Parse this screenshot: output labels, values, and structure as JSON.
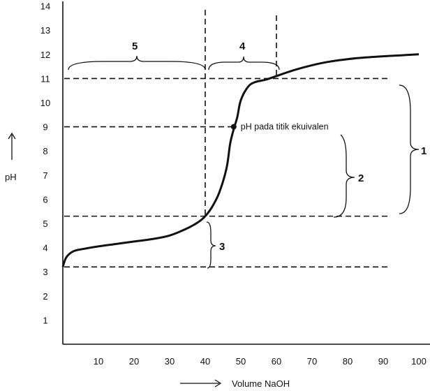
{
  "chart_data": {
    "type": "line",
    "title": "",
    "xlabel": "Volume NaOH",
    "ylabel": "pH",
    "xlim": [
      0,
      100
    ],
    "ylim": [
      0,
      14
    ],
    "x_ticks": [
      10,
      20,
      30,
      40,
      50,
      60,
      70,
      80,
      90,
      100
    ],
    "y_ticks": [
      1,
      2,
      3,
      4,
      5,
      6,
      7,
      8,
      9,
      10,
      11,
      12,
      13,
      14
    ],
    "grid": false,
    "series": [
      {
        "x": [
          0,
          1,
          3,
          6,
          10,
          15,
          20,
          25,
          30,
          35,
          38,
          40,
          42,
          44,
          46,
          47,
          48,
          49,
          50,
          52,
          54,
          57,
          60,
          65,
          70,
          75,
          80,
          85,
          90,
          95,
          100
        ],
        "y": [
          3.2,
          3.6,
          3.85,
          3.95,
          4.05,
          4.15,
          4.25,
          4.35,
          4.5,
          4.8,
          5.05,
          5.3,
          5.7,
          6.3,
          7.3,
          8.3,
          8.9,
          9.4,
          10.1,
          10.65,
          10.85,
          10.95,
          11.1,
          11.35,
          11.55,
          11.7,
          11.8,
          11.87,
          11.92,
          11.96,
          12.0
        ]
      }
    ],
    "reference_lines": {
      "horizontal_ph": [
        11,
        9,
        5.3,
        3.2
      ],
      "vertical_volume": [
        40,
        60
      ]
    },
    "equivalence_point": {
      "x": 48,
      "y": 9,
      "label": "pH pada titik ekuivalen"
    },
    "braces": [
      {
        "label": "1"
      },
      {
        "label": "2"
      },
      {
        "label": "3"
      },
      {
        "label": "4"
      },
      {
        "label": "5"
      }
    ]
  }
}
